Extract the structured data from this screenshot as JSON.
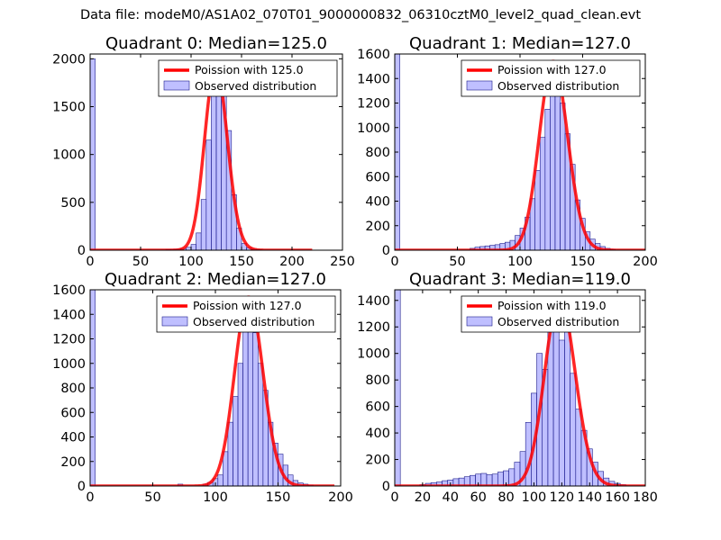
{
  "suptitle": "Data file: modeM0/AS1A02_070T01_9000000832_06310cztM0_level2_quad_clean.evt",
  "colors": {
    "bar_fill": "#8080ff",
    "bar_edge": "#1c1c8c",
    "curve": "#ff0000",
    "background": "#ffffff"
  },
  "chart_data": [
    {
      "type": "bar",
      "title": "Quadrant 0: Median=125.0",
      "xlim": [
        0,
        250
      ],
      "ylim": [
        0,
        2050
      ],
      "xticks": [
        0,
        50,
        100,
        150,
        200,
        250
      ],
      "yticks": [
        0,
        500,
        1000,
        1500,
        2000
      ],
      "legend": {
        "placement": "upper-right",
        "entries": [
          "Poission with 125.0",
          "Observed distribution"
        ]
      },
      "histogram": {
        "bin_width": 5,
        "bins": [
          [
            0,
            2000
          ],
          [
            70,
            3
          ],
          [
            75,
            8
          ],
          [
            80,
            10
          ],
          [
            85,
            12
          ],
          [
            90,
            18
          ],
          [
            95,
            30
          ],
          [
            100,
            60
          ],
          [
            105,
            180
          ],
          [
            110,
            530
          ],
          [
            115,
            1150
          ],
          [
            120,
            1650
          ],
          [
            125,
            1880
          ],
          [
            130,
            1650
          ],
          [
            135,
            1250
          ],
          [
            140,
            580
          ],
          [
            145,
            230
          ],
          [
            150,
            70
          ],
          [
            155,
            25
          ],
          [
            160,
            10
          ],
          [
            165,
            5
          ]
        ]
      },
      "poisson": {
        "mean": 125.0,
        "scale": 1930,
        "range": [
          0,
          220
        ]
      }
    },
    {
      "type": "bar",
      "title": "Quadrant 1: Median=127.0",
      "xlim": [
        0,
        200
      ],
      "ylim": [
        0,
        1600
      ],
      "xticks": [
        0,
        50,
        100,
        150,
        200
      ],
      "yticks": [
        0,
        200,
        400,
        600,
        800,
        1000,
        1200,
        1400,
        1600
      ],
      "legend": {
        "placement": "upper-right",
        "entries": [
          "Poission with 127.0",
          "Observed distribution"
        ]
      },
      "histogram": {
        "bin_width": 4,
        "bins": [
          [
            0,
            1600
          ],
          [
            60,
            15
          ],
          [
            64,
            25
          ],
          [
            68,
            30
          ],
          [
            72,
            35
          ],
          [
            76,
            40
          ],
          [
            80,
            45
          ],
          [
            84,
            55
          ],
          [
            88,
            65
          ],
          [
            92,
            80
          ],
          [
            96,
            120
          ],
          [
            100,
            180
          ],
          [
            104,
            270
          ],
          [
            108,
            420
          ],
          [
            112,
            650
          ],
          [
            116,
            920
          ],
          [
            120,
            1150
          ],
          [
            124,
            1400
          ],
          [
            128,
            1480
          ],
          [
            132,
            1200
          ],
          [
            136,
            950
          ],
          [
            140,
            700
          ],
          [
            144,
            410
          ],
          [
            148,
            260
          ],
          [
            152,
            150
          ],
          [
            156,
            90
          ],
          [
            160,
            55
          ],
          [
            164,
            30
          ],
          [
            168,
            15
          ],
          [
            172,
            8
          ]
        ]
      },
      "poisson": {
        "mean": 127.0,
        "scale": 1540,
        "range": [
          0,
          200
        ]
      }
    },
    {
      "type": "bar",
      "title": "Quadrant 2: Median=127.0",
      "xlim": [
        0,
        200
      ],
      "ylim": [
        0,
        1600
      ],
      "xticks": [
        0,
        50,
        100,
        150,
        200
      ],
      "yticks": [
        0,
        200,
        400,
        600,
        800,
        1000,
        1200,
        1400,
        1600
      ],
      "legend": {
        "placement": "upper-right",
        "entries": [
          "Poission with 127.0",
          "Observed distribution"
        ]
      },
      "histogram": {
        "bin_width": 4,
        "bins": [
          [
            0,
            1600
          ],
          [
            70,
            15
          ],
          [
            90,
            15
          ],
          [
            94,
            30
          ],
          [
            98,
            60
          ],
          [
            102,
            90
          ],
          [
            106,
            280
          ],
          [
            110,
            520
          ],
          [
            114,
            730
          ],
          [
            118,
            1000
          ],
          [
            122,
            1300
          ],
          [
            126,
            1500
          ],
          [
            130,
            1250
          ],
          [
            134,
            1000
          ],
          [
            138,
            780
          ],
          [
            142,
            520
          ],
          [
            146,
            350
          ],
          [
            150,
            260
          ],
          [
            154,
            170
          ],
          [
            158,
            90
          ],
          [
            162,
            45
          ],
          [
            166,
            25
          ],
          [
            170,
            15
          ],
          [
            174,
            8
          ]
        ]
      },
      "poisson": {
        "mean": 127.0,
        "scale": 1540,
        "range": [
          0,
          195
        ]
      }
    },
    {
      "type": "bar",
      "title": "Quadrant 3: Median=119.0",
      "xlim": [
        0,
        180
      ],
      "ylim": [
        0,
        1480
      ],
      "xticks": [
        0,
        20,
        40,
        60,
        80,
        100,
        120,
        140,
        160,
        180
      ],
      "yticks": [
        0,
        200,
        400,
        600,
        800,
        1000,
        1200,
        1400
      ],
      "legend": {
        "placement": "upper-right",
        "entries": [
          "Poission with 119.0",
          "Observed distribution"
        ]
      },
      "histogram": {
        "bin_width": 4,
        "bins": [
          [
            0,
            1480
          ],
          [
            18,
            10
          ],
          [
            22,
            20
          ],
          [
            26,
            25
          ],
          [
            30,
            30
          ],
          [
            34,
            40
          ],
          [
            38,
            45
          ],
          [
            42,
            55
          ],
          [
            46,
            60
          ],
          [
            50,
            70
          ],
          [
            54,
            80
          ],
          [
            58,
            90
          ],
          [
            62,
            95
          ],
          [
            66,
            85
          ],
          [
            70,
            90
          ],
          [
            74,
            105
          ],
          [
            78,
            115
          ],
          [
            82,
            130
          ],
          [
            86,
            180
          ],
          [
            90,
            260
          ],
          [
            94,
            480
          ],
          [
            98,
            700
          ],
          [
            102,
            1000
          ],
          [
            106,
            880
          ],
          [
            110,
            1200
          ],
          [
            114,
            1400
          ],
          [
            118,
            1100
          ],
          [
            122,
            1200
          ],
          [
            126,
            850
          ],
          [
            130,
            580
          ],
          [
            134,
            420
          ],
          [
            138,
            280
          ],
          [
            142,
            180
          ],
          [
            146,
            110
          ],
          [
            150,
            60
          ],
          [
            154,
            35
          ],
          [
            158,
            20
          ],
          [
            162,
            10
          ]
        ]
      },
      "poisson": {
        "mean": 119.0,
        "scale": 1420,
        "range": [
          0,
          180
        ]
      }
    }
  ]
}
